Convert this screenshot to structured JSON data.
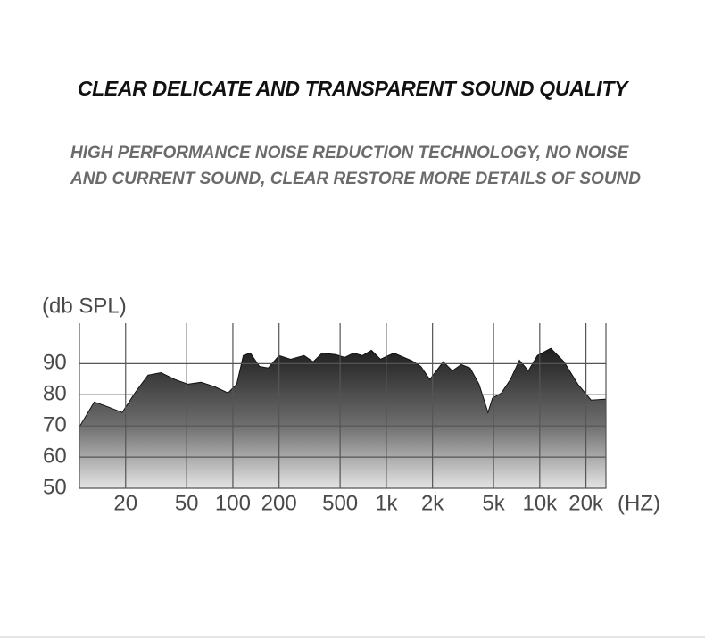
{
  "chart_data": {
    "type": "area",
    "title": "CLEAR  DELICATE AND TRANSPARENT SOUND QUALITY",
    "subtitle": "HIGH PERFORMANCE NOISE REDUCTION TECHNOLOGY, NO NOISE AND CURRENT SOUND, CLEAR RESTORE MORE DETAILS OF SOUND",
    "y_label": "(db SPL)",
    "x_label": "(HZ)",
    "xscale": "log",
    "grid": true,
    "color": "#1e1e1e",
    "xlim": [
      10,
      27000
    ],
    "ylim": [
      50,
      103
    ],
    "xticks": [
      {
        "value": 20,
        "label": "20"
      },
      {
        "value": 50,
        "label": "50"
      },
      {
        "value": 100,
        "label": "100"
      },
      {
        "value": 200,
        "label": "200"
      },
      {
        "value": 500,
        "label": "500"
      },
      {
        "value": 1000,
        "label": "1k"
      },
      {
        "value": 2000,
        "label": "2k"
      },
      {
        "value": 5000,
        "label": "5k"
      },
      {
        "value": 10000,
        "label": "10k"
      },
      {
        "value": 20000,
        "label": "20k"
      }
    ],
    "yticks": [
      50,
      60,
      70,
      80,
      90
    ],
    "x": [
      10,
      12.5,
      15,
      19,
      23,
      28,
      34,
      42,
      51,
      62,
      76,
      93,
      106,
      117,
      130,
      149,
      170,
      200,
      238,
      291,
      334,
      382,
      468,
      535,
      612,
      700,
      800,
      916,
      1120,
      1470,
      1680,
      1920,
      2350,
      2690,
      3080,
      3520,
      4020,
      4600,
      4920,
      5630,
      6440,
      7370,
      8430,
      9650,
      11800,
      14400,
      17700,
      21600,
      27000
    ],
    "values": [
      69.7,
      77.7,
      76.3,
      74.3,
      80.6,
      86.3,
      87.1,
      84.9,
      83.4,
      84,
      82.6,
      80.6,
      83.4,
      92.6,
      93.4,
      89.1,
      88.6,
      92.6,
      91.4,
      92.6,
      90.6,
      93.4,
      92.9,
      92,
      93.4,
      92.6,
      94.3,
      91.4,
      93.4,
      90.9,
      89.1,
      84.9,
      90.6,
      87.7,
      89.7,
      88.6,
      83.4,
      74.3,
      78.9,
      80.6,
      84.9,
      91.1,
      87.7,
      92.6,
      94.9,
      90.6,
      83.4,
      78.3,
      78.6
    ]
  }
}
